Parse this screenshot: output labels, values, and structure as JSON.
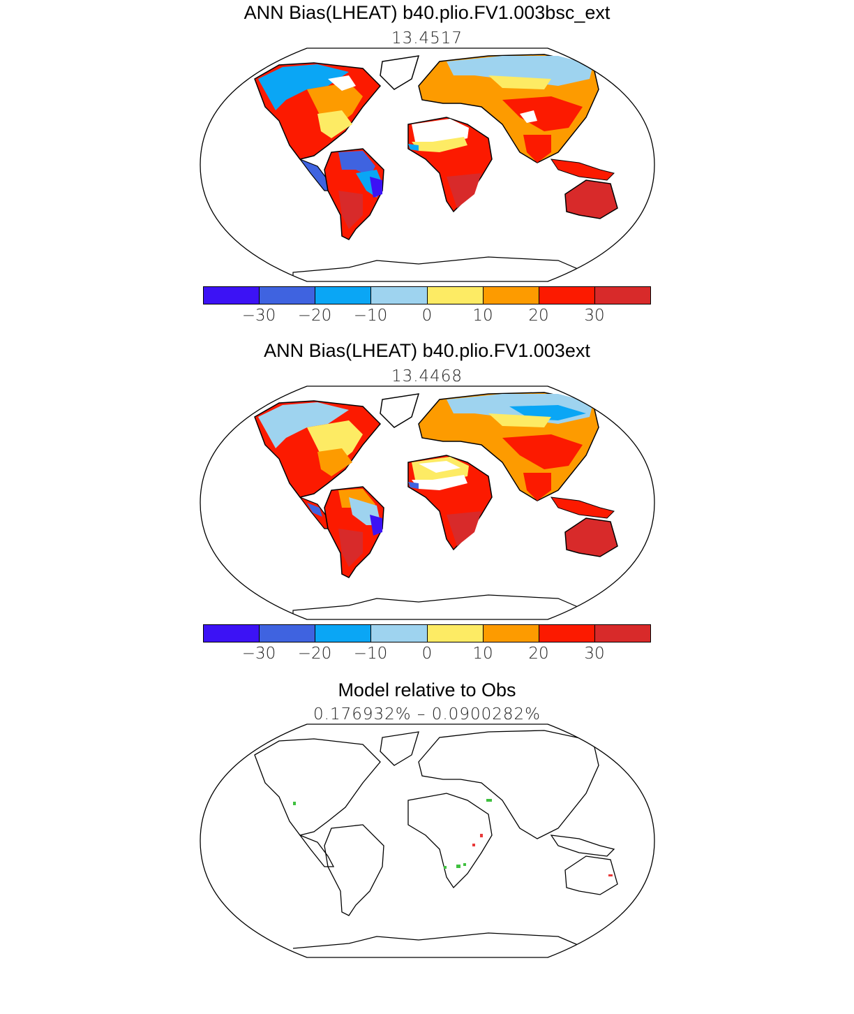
{
  "panels": [
    {
      "title": "ANN Bias(LHEAT) b40.plio.FV1.003bsc_ext",
      "subtitle": "13.4517"
    },
    {
      "title": "ANN Bias(LHEAT) b40.plio.FV1.003ext",
      "subtitle": "13.4468"
    },
    {
      "title": "Model relative to Obs",
      "subtitle": "0.176932%  –  0.0900282%"
    }
  ],
  "colorbar": {
    "colors": [
      "#3c12f5",
      "#3f63e0",
      "#0aa6f5",
      "#9ed3ef",
      "#fdeb64",
      "#fd9b00",
      "#fc1a00",
      "#d82a2a"
    ],
    "ticks": [
      "−30",
      "−20",
      "−10",
      "0",
      "10",
      "20",
      "30"
    ]
  },
  "relative_colors": {
    "positive": "#e83a3a",
    "negative": "#40c040"
  }
}
